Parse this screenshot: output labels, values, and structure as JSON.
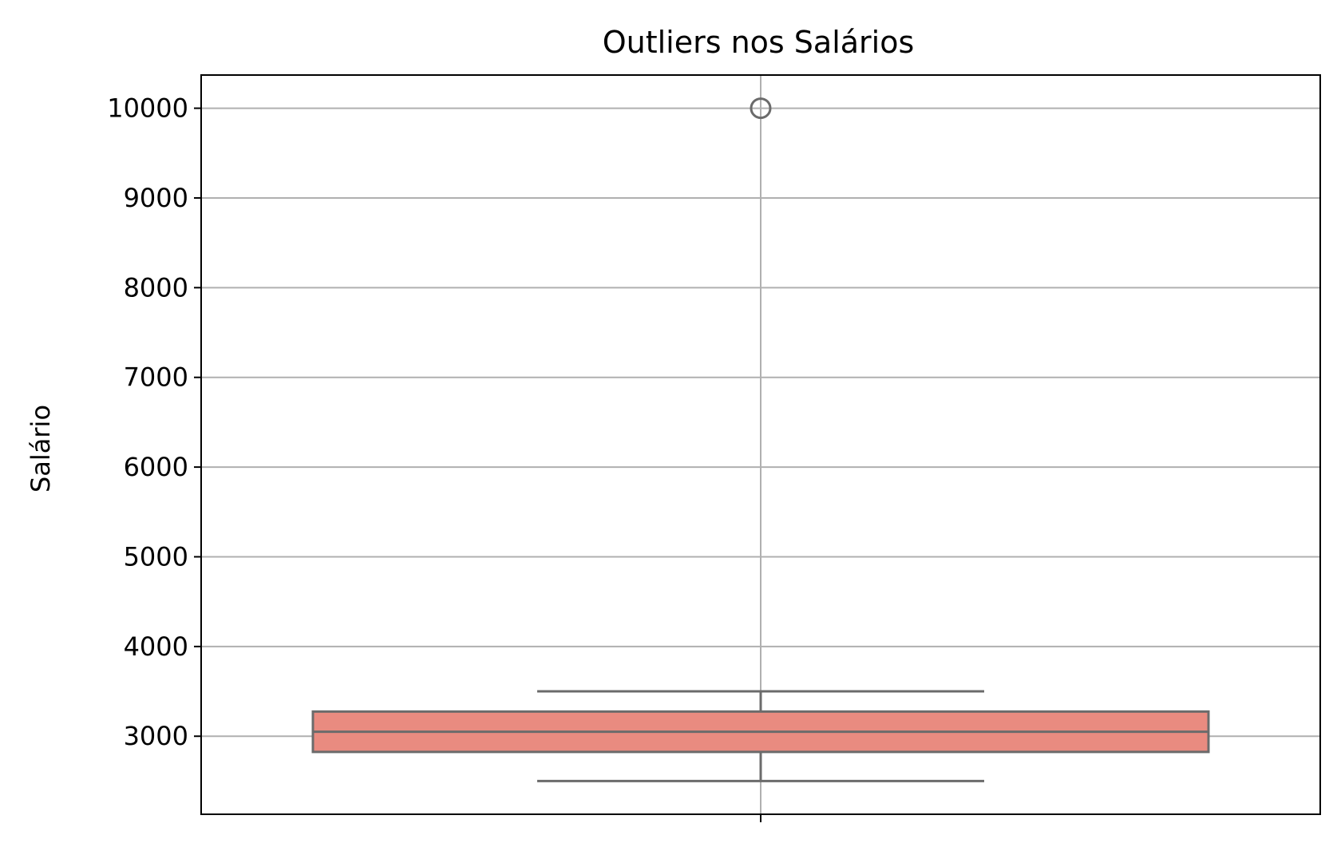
{
  "chart_data": {
    "type": "box",
    "title": "Outliers nos Salários",
    "xlabel": "",
    "ylabel": "Salário",
    "ylim": [
      2130,
      10370
    ],
    "yticks": [
      3000,
      4000,
      5000,
      6000,
      7000,
      8000,
      9000,
      10000
    ],
    "ytick_labels": [
      "3000",
      "4000",
      "5000",
      "6000",
      "7000",
      "8000",
      "9000",
      "10000"
    ],
    "grid": true,
    "series": [
      {
        "whisker_low": 2500,
        "q1": 2825,
        "median": 3050,
        "q3": 3275,
        "whisker_high": 3500,
        "outliers": [
          10000
        ],
        "color": "#e98b80"
      }
    ]
  }
}
